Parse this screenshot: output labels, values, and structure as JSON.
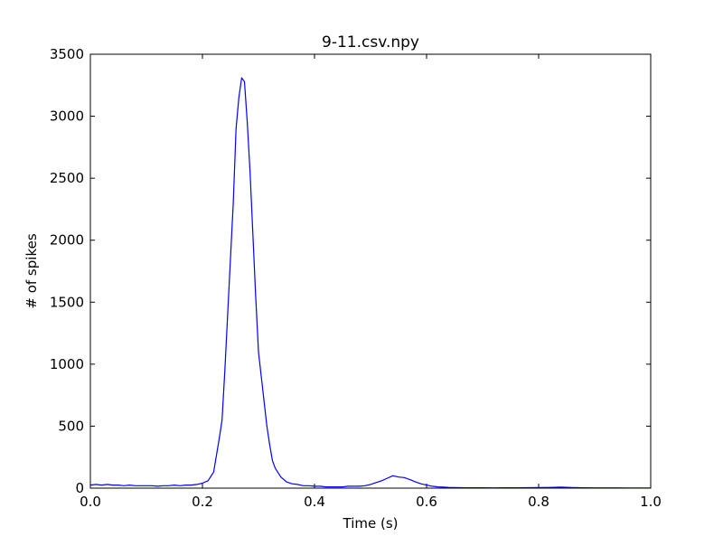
{
  "chart_data": {
    "type": "line",
    "title": "9-11.csv.npy",
    "xlabel": "Time (s)",
    "ylabel": "# of spikes",
    "xlim": [
      0.0,
      1.0
    ],
    "ylim": [
      0,
      3500
    ],
    "x_ticks": [
      0.0,
      0.2,
      0.4,
      0.6,
      0.8,
      1.0
    ],
    "x_tick_labels": [
      "0.0",
      "0.2",
      "0.4",
      "0.6",
      "0.8",
      "1.0"
    ],
    "y_ticks": [
      0,
      500,
      1000,
      1500,
      2000,
      2500,
      3000,
      3500
    ],
    "y_tick_labels": [
      "0",
      "500",
      "1000",
      "1500",
      "2000",
      "2500",
      "3000",
      "3500"
    ],
    "grid": false,
    "series": [
      {
        "color": "#0000ff",
        "x": [
          0.0,
          0.01,
          0.02,
          0.03,
          0.04,
          0.05,
          0.06,
          0.07,
          0.08,
          0.09,
          0.1,
          0.11,
          0.12,
          0.13,
          0.14,
          0.15,
          0.16,
          0.17,
          0.18,
          0.19,
          0.2,
          0.21,
          0.22,
          0.23,
          0.235,
          0.24,
          0.245,
          0.25,
          0.255,
          0.26,
          0.265,
          0.27,
          0.275,
          0.28,
          0.285,
          0.29,
          0.295,
          0.3,
          0.305,
          0.31,
          0.315,
          0.32,
          0.325,
          0.33,
          0.34,
          0.35,
          0.36,
          0.37,
          0.38,
          0.39,
          0.4,
          0.41,
          0.42,
          0.43,
          0.44,
          0.45,
          0.46,
          0.47,
          0.48,
          0.49,
          0.5,
          0.51,
          0.52,
          0.53,
          0.54,
          0.55,
          0.56,
          0.57,
          0.58,
          0.59,
          0.6,
          0.61,
          0.62,
          0.63,
          0.64,
          0.65,
          0.66,
          0.67,
          0.68,
          0.69,
          0.7,
          0.72,
          0.74,
          0.76,
          0.78,
          0.8,
          0.82,
          0.84,
          0.86,
          0.88,
          0.9,
          0.92,
          0.94,
          0.96,
          0.98,
          1.0
        ],
        "y": [
          25,
          30,
          25,
          30,
          25,
          25,
          20,
          25,
          20,
          20,
          20,
          20,
          15,
          20,
          20,
          25,
          20,
          25,
          25,
          30,
          40,
          60,
          130,
          400,
          550,
          950,
          1400,
          1850,
          2300,
          2900,
          3150,
          3310,
          3280,
          2950,
          2550,
          2050,
          1550,
          1100,
          900,
          700,
          500,
          350,
          220,
          160,
          90,
          50,
          35,
          30,
          20,
          20,
          15,
          15,
          10,
          10,
          10,
          10,
          15,
          15,
          15,
          20,
          30,
          45,
          60,
          80,
          100,
          90,
          85,
          70,
          50,
          35,
          25,
          15,
          10,
          8,
          6,
          5,
          4,
          3,
          3,
          3,
          3,
          2,
          3,
          3,
          4,
          5,
          6,
          8,
          5,
          3,
          2,
          2,
          2,
          1,
          1,
          1
        ]
      }
    ]
  }
}
